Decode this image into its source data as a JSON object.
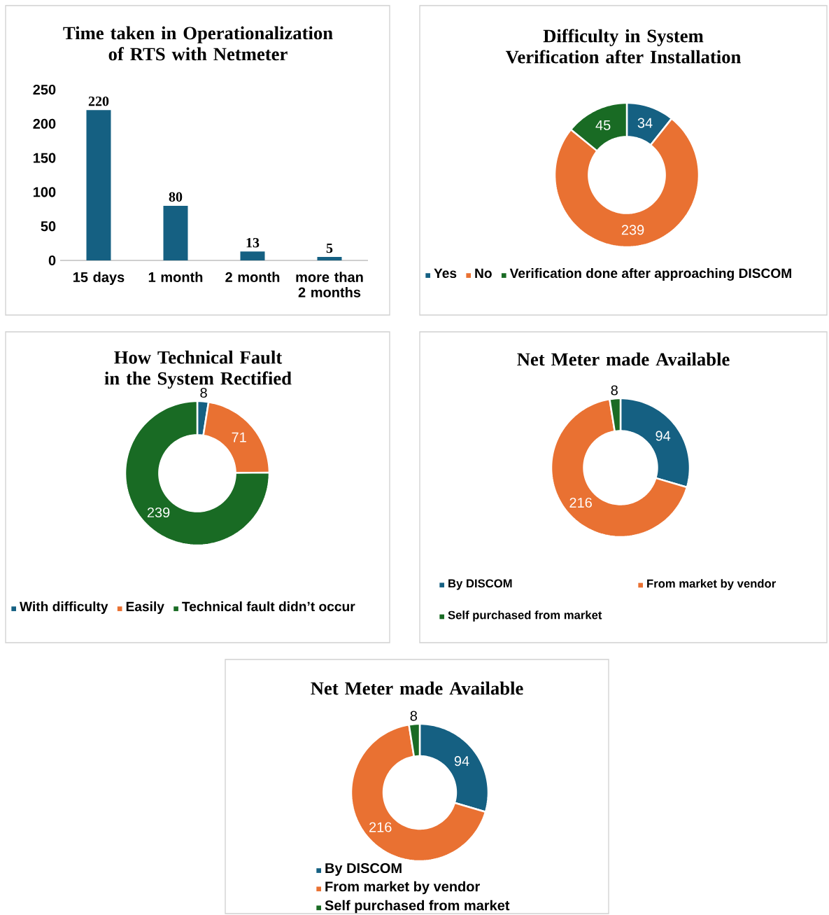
{
  "chart_data": [
    {
      "type": "bar",
      "title": "Time taken in Operationalization of RTS with Netmeter",
      "categories": [
        "15 days",
        "1 month",
        "2 month",
        "more than 2 months"
      ],
      "values": [
        220,
        80,
        13,
        5
      ],
      "color": "#156082",
      "ylim": [
        0,
        250
      ],
      "yticks": [
        0,
        50,
        100,
        150,
        200,
        250
      ],
      "data_labels": true
    },
    {
      "type": "donut",
      "title": "Difficulty in System Verification after Installation",
      "categories": [
        "Yes",
        "No",
        "Verification done after approaching DISCOM"
      ],
      "values": [
        34,
        239,
        45
      ],
      "colors": [
        "#156082",
        "#e97132",
        "#196b24"
      ],
      "data_labels": true,
      "legend": "bottom"
    },
    {
      "type": "donut",
      "title": "How Technical Fault in the System Rectified",
      "categories": [
        "With difficulty",
        "Easily",
        "Technical fault didn’t occur"
      ],
      "values": [
        8,
        71,
        239
      ],
      "colors": [
        "#156082",
        "#e97132",
        "#196b24"
      ],
      "data_labels": true,
      "legend": "bottom"
    },
    {
      "type": "donut",
      "title": "Net Meter made Available",
      "categories": [
        "By DISCOM",
        "From market by  vendor",
        "Self purchased from market"
      ],
      "values": [
        94,
        216,
        8
      ],
      "colors": [
        "#156082",
        "#e97132",
        "#196b24"
      ],
      "data_labels": true,
      "legend": "bottom"
    },
    {
      "type": "donut",
      "title": "Net Meter made Available",
      "categories": [
        "By DISCOM",
        "From market by  vendor",
        "Self purchased from market"
      ],
      "values": [
        94,
        216,
        8
      ],
      "colors": [
        "#156082",
        "#e97132",
        "#196b24"
      ],
      "data_labels": true,
      "legend": "bottom"
    }
  ]
}
